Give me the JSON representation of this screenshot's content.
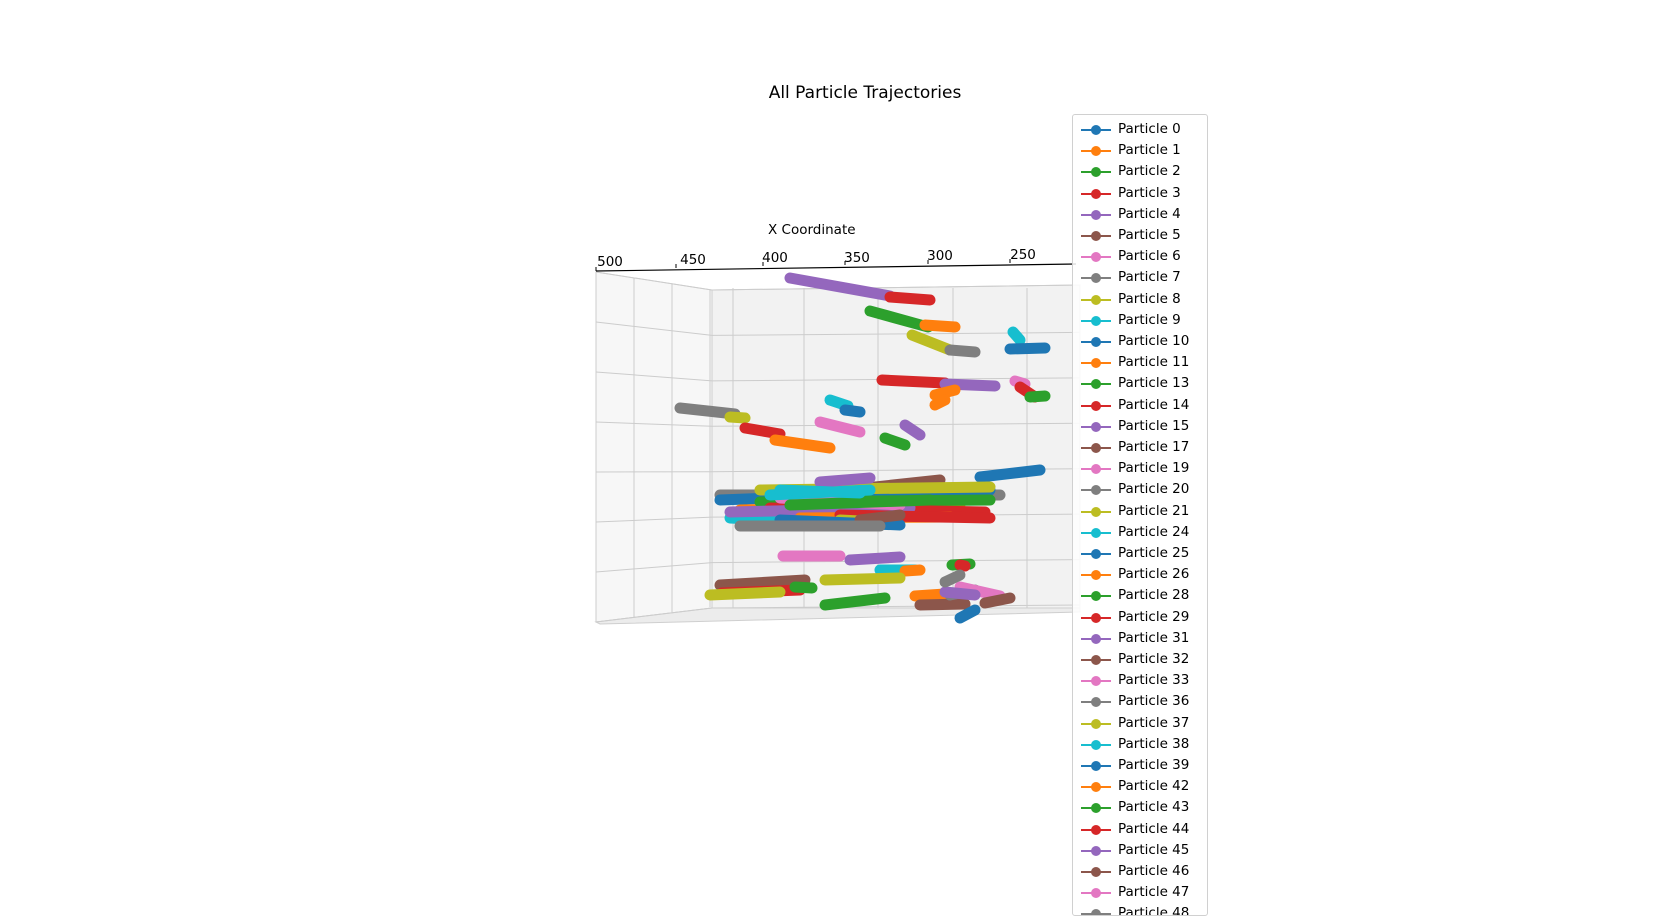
{
  "chart_data": {
    "type": "scatter",
    "title": "All Particle Trajectories",
    "xlabel": "X Coordinate",
    "x_ticks": [
      "500",
      "450",
      "400",
      "350",
      "300",
      "250"
    ],
    "xlim": [
      250,
      500
    ],
    "legend_position": "right",
    "series": [
      {
        "name": "Particle 0",
        "color": "#1f77b4"
      },
      {
        "name": "Particle 1",
        "color": "#ff7f0e"
      },
      {
        "name": "Particle 2",
        "color": "#2ca02c"
      },
      {
        "name": "Particle 3",
        "color": "#d62728"
      },
      {
        "name": "Particle 4",
        "color": "#9467bd"
      },
      {
        "name": "Particle 5",
        "color": "#8c564b"
      },
      {
        "name": "Particle 6",
        "color": "#e377c2"
      },
      {
        "name": "Particle 7",
        "color": "#7f7f7f"
      },
      {
        "name": "Particle 8",
        "color": "#bcbd22"
      },
      {
        "name": "Particle 9",
        "color": "#17becf"
      },
      {
        "name": "Particle 10",
        "color": "#1f77b4"
      },
      {
        "name": "Particle 11",
        "color": "#ff7f0e"
      },
      {
        "name": "Particle 13",
        "color": "#2ca02c"
      },
      {
        "name": "Particle 14",
        "color": "#d62728"
      },
      {
        "name": "Particle 15",
        "color": "#9467bd"
      },
      {
        "name": "Particle 17",
        "color": "#8c564b"
      },
      {
        "name": "Particle 19",
        "color": "#e377c2"
      },
      {
        "name": "Particle 20",
        "color": "#7f7f7f"
      },
      {
        "name": "Particle 21",
        "color": "#bcbd22"
      },
      {
        "name": "Particle 24",
        "color": "#17becf"
      },
      {
        "name": "Particle 25",
        "color": "#1f77b4"
      },
      {
        "name": "Particle 26",
        "color": "#ff7f0e"
      },
      {
        "name": "Particle 28",
        "color": "#2ca02c"
      },
      {
        "name": "Particle 29",
        "color": "#d62728"
      },
      {
        "name": "Particle 31",
        "color": "#9467bd"
      },
      {
        "name": "Particle 32",
        "color": "#8c564b"
      },
      {
        "name": "Particle 33",
        "color": "#e377c2"
      },
      {
        "name": "Particle 36",
        "color": "#7f7f7f"
      },
      {
        "name": "Particle 37",
        "color": "#bcbd22"
      },
      {
        "name": "Particle 38",
        "color": "#17becf"
      },
      {
        "name": "Particle 39",
        "color": "#1f77b4"
      },
      {
        "name": "Particle 42",
        "color": "#ff7f0e"
      },
      {
        "name": "Particle 43",
        "color": "#2ca02c"
      },
      {
        "name": "Particle 44",
        "color": "#d62728"
      },
      {
        "name": "Particle 45",
        "color": "#9467bd"
      },
      {
        "name": "Particle 46",
        "color": "#8c564b"
      },
      {
        "name": "Particle 47",
        "color": "#e377c2"
      },
      {
        "name": "Particle 48",
        "color": "#7f7f7f"
      }
    ]
  }
}
